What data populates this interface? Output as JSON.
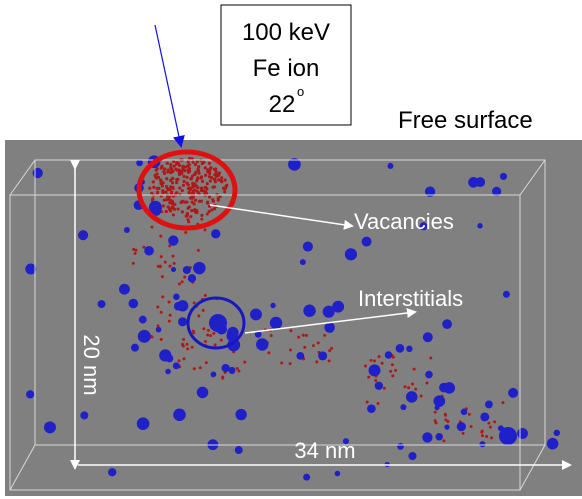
{
  "ion_box": {
    "energy": "100 keV",
    "ion": "Fe ion",
    "angle": "22",
    "angle_unit": "o"
  },
  "labels": {
    "surface": "Free surface",
    "vacancies": "Vacancies",
    "interstitials": "Interstitials",
    "depth": "20 nm",
    "width": "34 nm"
  }
}
